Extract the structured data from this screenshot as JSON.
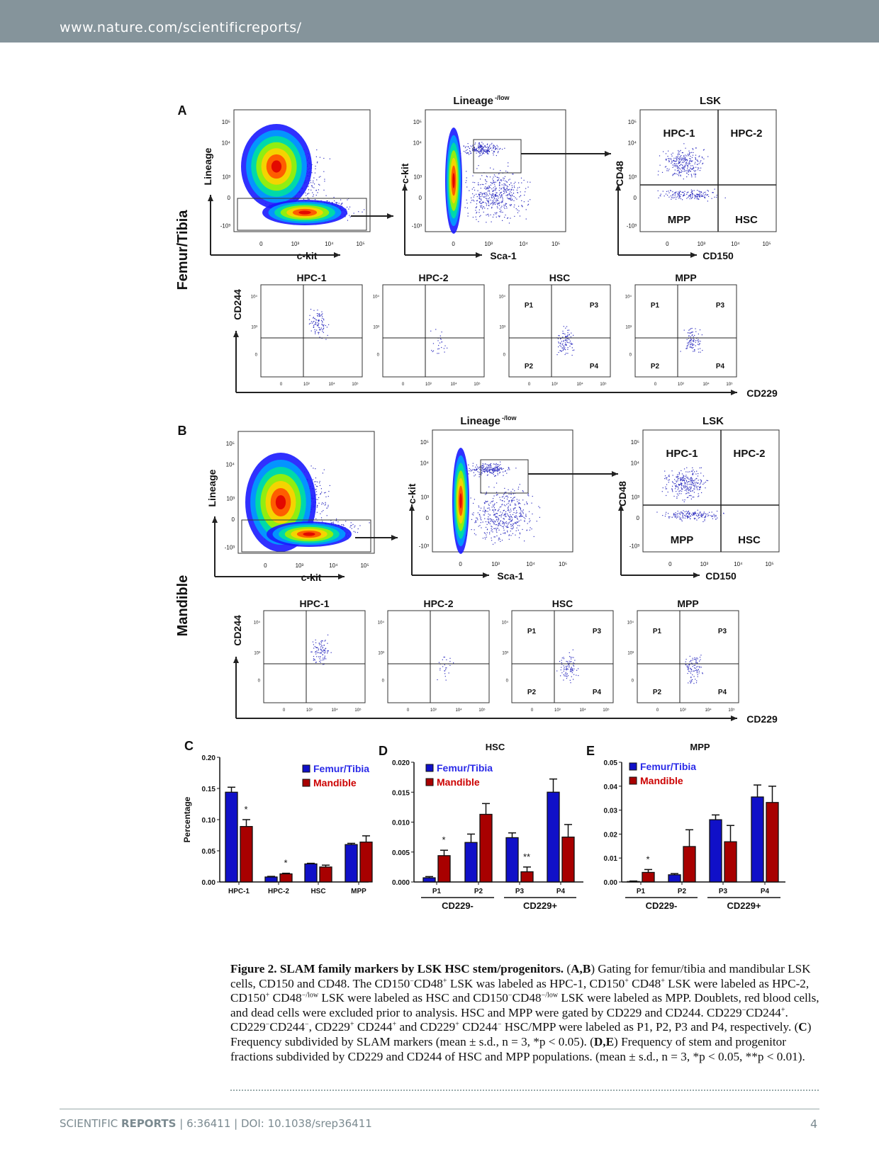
{
  "header": {
    "url": "www.nature.com/scientificreports/"
  },
  "flow": {
    "ticks_x": [
      "0",
      "10³",
      "10⁴",
      "10⁵"
    ],
    "ticks_y": [
      "-10³",
      "0",
      "10³",
      "10⁴",
      "10⁵"
    ],
    "A": {
      "panel_label": "A",
      "side_label": "Femur/Tibia",
      "top": [
        {
          "title": "",
          "xlabel": "c-kit",
          "ylabel": "Lineage"
        },
        {
          "title": "Lineage",
          "title_sup": "-/low",
          "xlabel": "Sca-1",
          "ylabel": "c-kit"
        },
        {
          "title": "LSK",
          "xlabel": "CD150",
          "ylabel": "CD48",
          "quadrants": [
            "HPC-1",
            "HPC-2",
            "MPP",
            "HSC"
          ]
        }
      ],
      "bottom": {
        "ylabel": "CD244",
        "xlabel": "CD229",
        "plots": [
          {
            "title": "HPC-1"
          },
          {
            "title": "HPC-2"
          },
          {
            "title": "HSC",
            "quadrants": [
              "P1",
              "P3",
              "P2",
              "P4"
            ]
          },
          {
            "title": "MPP",
            "quadrants": [
              "P1",
              "P3",
              "P2",
              "P4"
            ]
          }
        ]
      }
    },
    "B": {
      "panel_label": "B",
      "side_label": "Mandible",
      "top": [
        {
          "title": "",
          "xlabel": "c-kit",
          "ylabel": "Lineage"
        },
        {
          "title": "Lineage",
          "title_sup": "-/low",
          "xlabel": "Sca-1",
          "ylabel": "c-kit"
        },
        {
          "title": "LSK",
          "xlabel": "CD150",
          "ylabel": "CD48",
          "quadrants": [
            "HPC-1",
            "HPC-2",
            "MPP",
            "HSC"
          ]
        }
      ],
      "bottom": {
        "ylabel": "CD244",
        "xlabel": "CD229",
        "plots": [
          {
            "title": "HPC-1"
          },
          {
            "title": "HPC-2"
          },
          {
            "title": "HSC",
            "quadrants": [
              "P1",
              "P3",
              "P2",
              "P4"
            ]
          },
          {
            "title": "MPP",
            "quadrants": [
              "P1",
              "P3",
              "P2",
              "P4"
            ]
          }
        ]
      }
    }
  },
  "colors": {
    "femur_tibia": "#1010c8",
    "mandible": "#a80000"
  },
  "chart_data": [
    {
      "panel_label": "C",
      "type": "bar",
      "title": "",
      "ylabel": "Percentage",
      "ylim": [
        0,
        0.2
      ],
      "yticks": [
        "0.00",
        "0.05",
        "0.10",
        "0.15",
        "0.20"
      ],
      "categories": [
        "HPC-1",
        "HPC-2",
        "HSC",
        "MPP"
      ],
      "series": [
        {
          "name": "Femur/Tibia",
          "values": [
            0.144,
            0.008,
            0.029,
            0.06
          ],
          "errors": [
            0.008,
            0.001,
            0.001,
            0.002
          ]
        },
        {
          "name": "Mandible",
          "values": [
            0.089,
            0.013,
            0.024,
            0.064
          ],
          "errors": [
            0.011,
            0.001,
            0.003,
            0.01
          ]
        }
      ],
      "significance": [
        "*",
        "*",
        "",
        ""
      ],
      "legend": "top-right"
    },
    {
      "panel_label": "D",
      "type": "bar",
      "title": "HSC",
      "ylabel": "",
      "ylim": [
        0,
        0.02
      ],
      "yticks": [
        "0.000",
        "0.005",
        "0.010",
        "0.015",
        "0.020"
      ],
      "categories": [
        "P1",
        "P2",
        "P3",
        "P4"
      ],
      "groups": [
        {
          "label": "CD229-",
          "members": [
            "P1",
            "P2"
          ]
        },
        {
          "label": "CD229+",
          "members": [
            "P3",
            "P4"
          ]
        }
      ],
      "series": [
        {
          "name": "Femur/Tibia",
          "values": [
            0.0007,
            0.0066,
            0.0074,
            0.015
          ],
          "errors": [
            0.0002,
            0.0014,
            0.0008,
            0.0022
          ]
        },
        {
          "name": "Mandible",
          "values": [
            0.0044,
            0.0113,
            0.0017,
            0.0075
          ],
          "errors": [
            0.0009,
            0.0018,
            0.0008,
            0.0021
          ]
        }
      ],
      "significance": [
        "*",
        "",
        "**",
        ""
      ],
      "legend": "top-left"
    },
    {
      "panel_label": "E",
      "type": "bar",
      "title": "MPP",
      "ylabel": "",
      "ylim": [
        0,
        0.05
      ],
      "yticks": [
        "0.00",
        "0.01",
        "0.02",
        "0.03",
        "0.04",
        "0.05"
      ],
      "categories": [
        "P1",
        "P2",
        "P3",
        "P4"
      ],
      "groups": [
        {
          "label": "CD229-",
          "members": [
            "P1",
            "P2"
          ]
        },
        {
          "label": "CD229+",
          "members": [
            "P3",
            "P4"
          ]
        }
      ],
      "series": [
        {
          "name": "Femur/Tibia",
          "values": [
            0.0002,
            0.003,
            0.026,
            0.0355
          ],
          "errors": [
            0.0002,
            0.0005,
            0.002,
            0.005
          ]
        },
        {
          "name": "Mandible",
          "values": [
            0.004,
            0.0148,
            0.0168,
            0.0332
          ],
          "errors": [
            0.0012,
            0.007,
            0.0068,
            0.0068
          ]
        }
      ],
      "significance": [
        "*",
        "",
        "",
        ""
      ],
      "legend": "top-left"
    }
  ],
  "caption": [
    {
      "t": "Figure 2.  SLAM family markers by LSK HSC stem/progenitors.",
      "b": true
    },
    {
      "t": " ("
    },
    {
      "t": "A,B",
      "b": true
    },
    {
      "t": ") Gating for femur/tibia and mandibular LSK cells, CD150 and CD48. The CD150"
    },
    {
      "t": "−",
      "sup": true
    },
    {
      "t": "CD48"
    },
    {
      "t": "+",
      "sup": true
    },
    {
      "t": " LSK was labeled as HPC-1, CD150"
    },
    {
      "t": "+",
      "sup": true
    },
    {
      "t": " CD48"
    },
    {
      "t": "+",
      "sup": true
    },
    {
      "t": " LSK were labeled as HPC-2, CD150"
    },
    {
      "t": "+",
      "sup": true
    },
    {
      "t": " CD48"
    },
    {
      "t": "−/low",
      "sup": true
    },
    {
      "t": " LSK were labeled as HSC and CD150"
    },
    {
      "t": "−",
      "sup": true
    },
    {
      "t": "CD48"
    },
    {
      "t": "−/low",
      "sup": true
    },
    {
      "t": " LSK were labeled as MPP. Doublets, red blood cells, and dead cells were excluded prior to analysis. HSC and MPP were gated by CD229 and CD244. CD229"
    },
    {
      "t": "−",
      "sup": true
    },
    {
      "t": "CD244"
    },
    {
      "t": "+",
      "sup": true
    },
    {
      "t": ". CD229"
    },
    {
      "t": "−",
      "sup": true
    },
    {
      "t": "CD244"
    },
    {
      "t": "−",
      "sup": true
    },
    {
      "t": ", CD229"
    },
    {
      "t": "+",
      "sup": true
    },
    {
      "t": " CD244"
    },
    {
      "t": "+",
      "sup": true
    },
    {
      "t": " and CD229"
    },
    {
      "t": "+",
      "sup": true
    },
    {
      "t": " CD244"
    },
    {
      "t": "−",
      "sup": true
    },
    {
      "t": " HSC/MPP were labeled as P1, P2, P3 and P4, respectively. ("
    },
    {
      "t": "C",
      "b": true
    },
    {
      "t": ") Frequency subdivided by SLAM markers (mean ± s.d., n = 3, *p < 0.05). ("
    },
    {
      "t": "D,E",
      "b": true
    },
    {
      "t": ") Frequency of stem and progenitor fractions subdivided by CD229 and CD244 of HSC and MPP populations. (mean ± s.d., n = 3, *p < 0.05, **p < 0.01)."
    }
  ],
  "footer": {
    "journal_light": "SCIENTIFIC",
    "journal_bold": "REPORTS",
    "citation": " | 6:36411 | DOI: 10.1038/srep36411",
    "page": "4"
  }
}
